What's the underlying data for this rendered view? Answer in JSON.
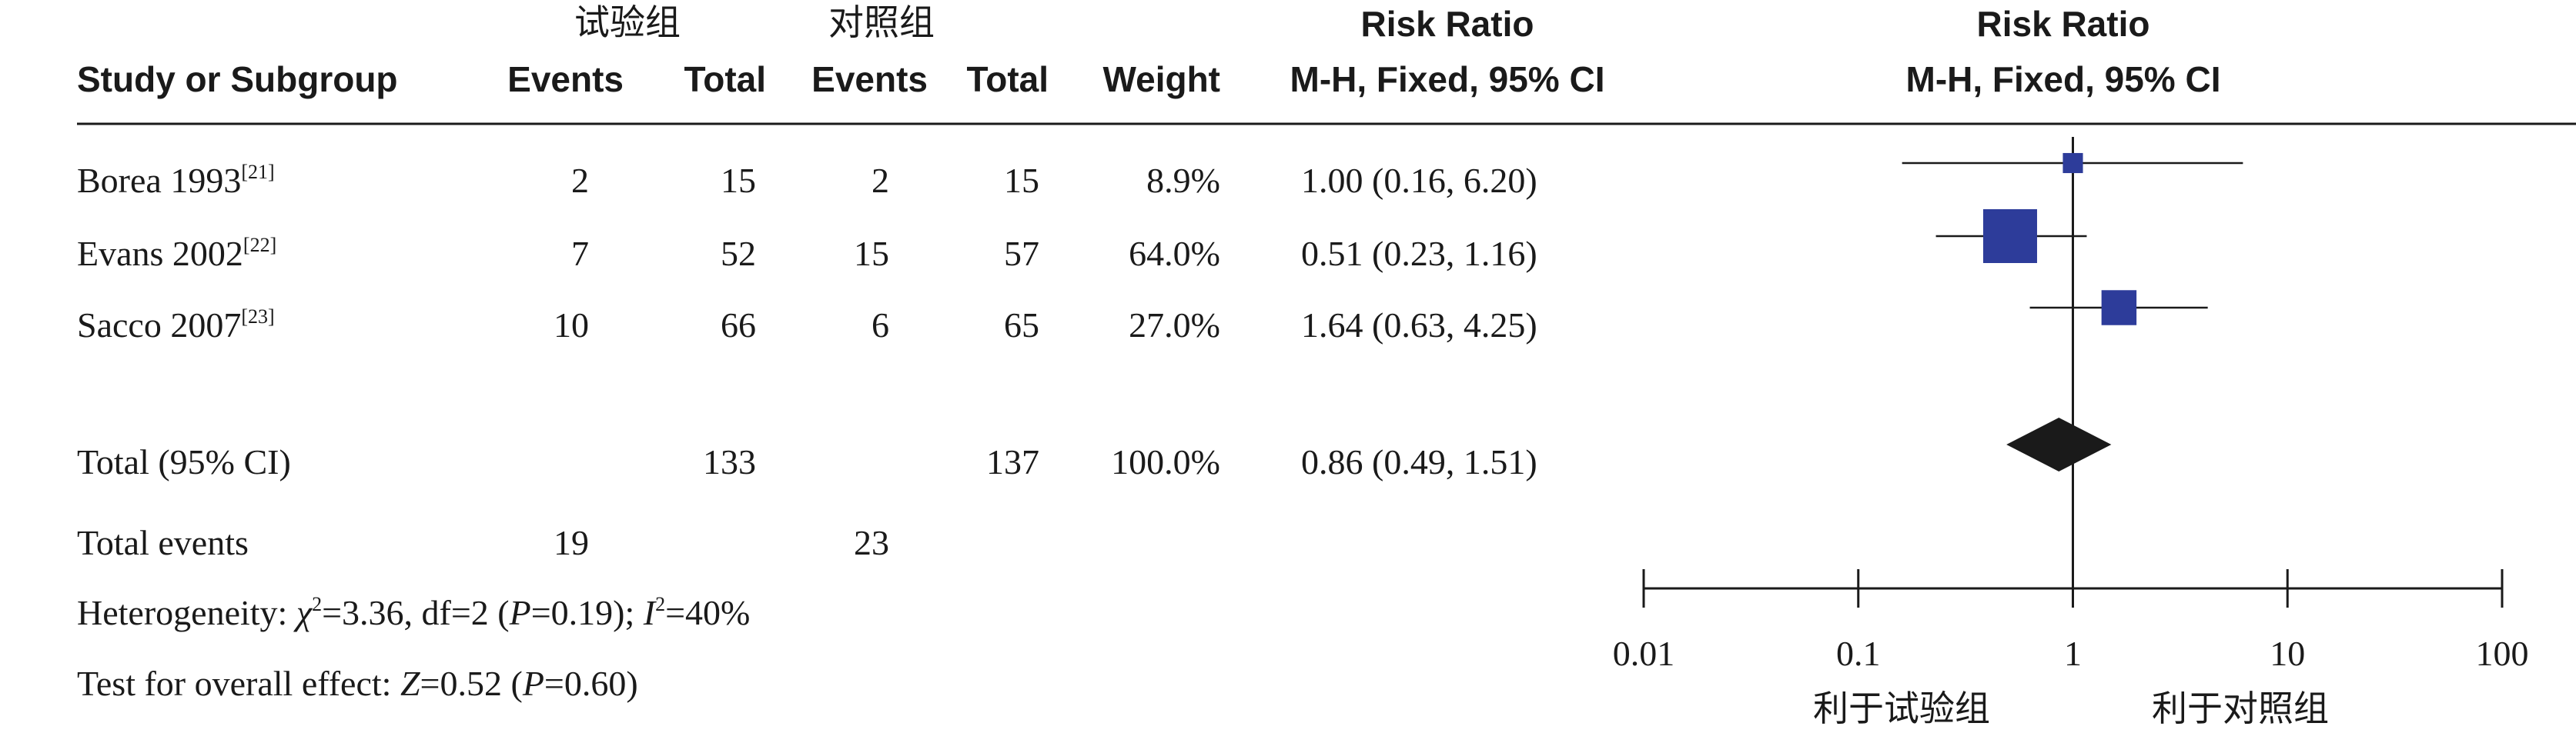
{
  "header": {
    "group_exp": "试验组",
    "group_ctrl": "对照组",
    "study_label": "Study or Subgroup",
    "events_label": "Events",
    "total_label": "Total",
    "weight_label": "Weight",
    "rr_title": "Risk Ratio",
    "rr_method": "M-H, Fixed, 95% CI",
    "plot_title": "Risk Ratio",
    "plot_method": "M-H, Fixed, 95% CI"
  },
  "studies": [
    {
      "name": "Borea 1993",
      "ref": "[21]",
      "exp_events": "2",
      "exp_total": "15",
      "ctrl_events": "2",
      "ctrl_total": "15",
      "weight": "8.9%",
      "ci_text": "1.00 (0.16, 6.20)"
    },
    {
      "name": "Evans 2002",
      "ref": "[22]",
      "exp_events": "7",
      "exp_total": "52",
      "ctrl_events": "15",
      "ctrl_total": "57",
      "weight": "64.0%",
      "ci_text": "0.51 (0.23, 1.16)"
    },
    {
      "name": "Sacco 2007",
      "ref": "[23]",
      "exp_events": "10",
      "exp_total": "66",
      "ctrl_events": "6",
      "ctrl_total": "65",
      "weight": "27.0%",
      "ci_text": "1.64 (0.63, 4.25)"
    }
  ],
  "total": {
    "label": "Total (95% CI)",
    "exp_total": "133",
    "ctrl_total": "137",
    "weight": "100.0%",
    "ci_text": "0.86 (0.49, 1.51)"
  },
  "total_events": {
    "label": "Total events",
    "exp_events": "19",
    "ctrl_events": "23"
  },
  "heterogeneity": {
    "prefix": "Heterogeneity: ",
    "chi": "χ",
    "chi_sup": "2",
    "chi_val": "=3.36, df=2 (",
    "p": "P",
    "p_val": "=0.19); ",
    "i": "I",
    "i_sup": "2",
    "i_val": "=40%"
  },
  "overall_effect": {
    "prefix": "Test for overall effect: ",
    "z": "Z",
    "z_val": "=0.52 (",
    "p": "P",
    "p_val": "=0.60)"
  },
  "axis": {
    "favours_left": "利于试验组",
    "favours_right": "利于对照组"
  },
  "chart_data": {
    "type": "forest",
    "scale": "log",
    "xlim": [
      0.01,
      100
    ],
    "ticks": [
      0.01,
      0.1,
      1,
      10,
      100
    ],
    "tick_labels": [
      "0.01",
      "0.1",
      "1",
      "10",
      "100"
    ],
    "reference_line": 1,
    "studies": [
      {
        "name": "Borea 1993",
        "rr": 1.0,
        "lo": 0.16,
        "hi": 6.2,
        "weight": 8.9
      },
      {
        "name": "Evans 2002",
        "rr": 0.51,
        "lo": 0.23,
        "hi": 1.16,
        "weight": 64.0
      },
      {
        "name": "Sacco 2007",
        "rr": 1.64,
        "lo": 0.63,
        "hi": 4.25,
        "weight": 27.0
      }
    ],
    "pooled": {
      "name": "Total (95% CI)",
      "rr": 0.86,
      "lo": 0.49,
      "hi": 1.51
    },
    "colors": {
      "study_marker": "#2d3c9a",
      "pooled": "#1a1a1a",
      "lines": "#1a1a1a"
    }
  }
}
